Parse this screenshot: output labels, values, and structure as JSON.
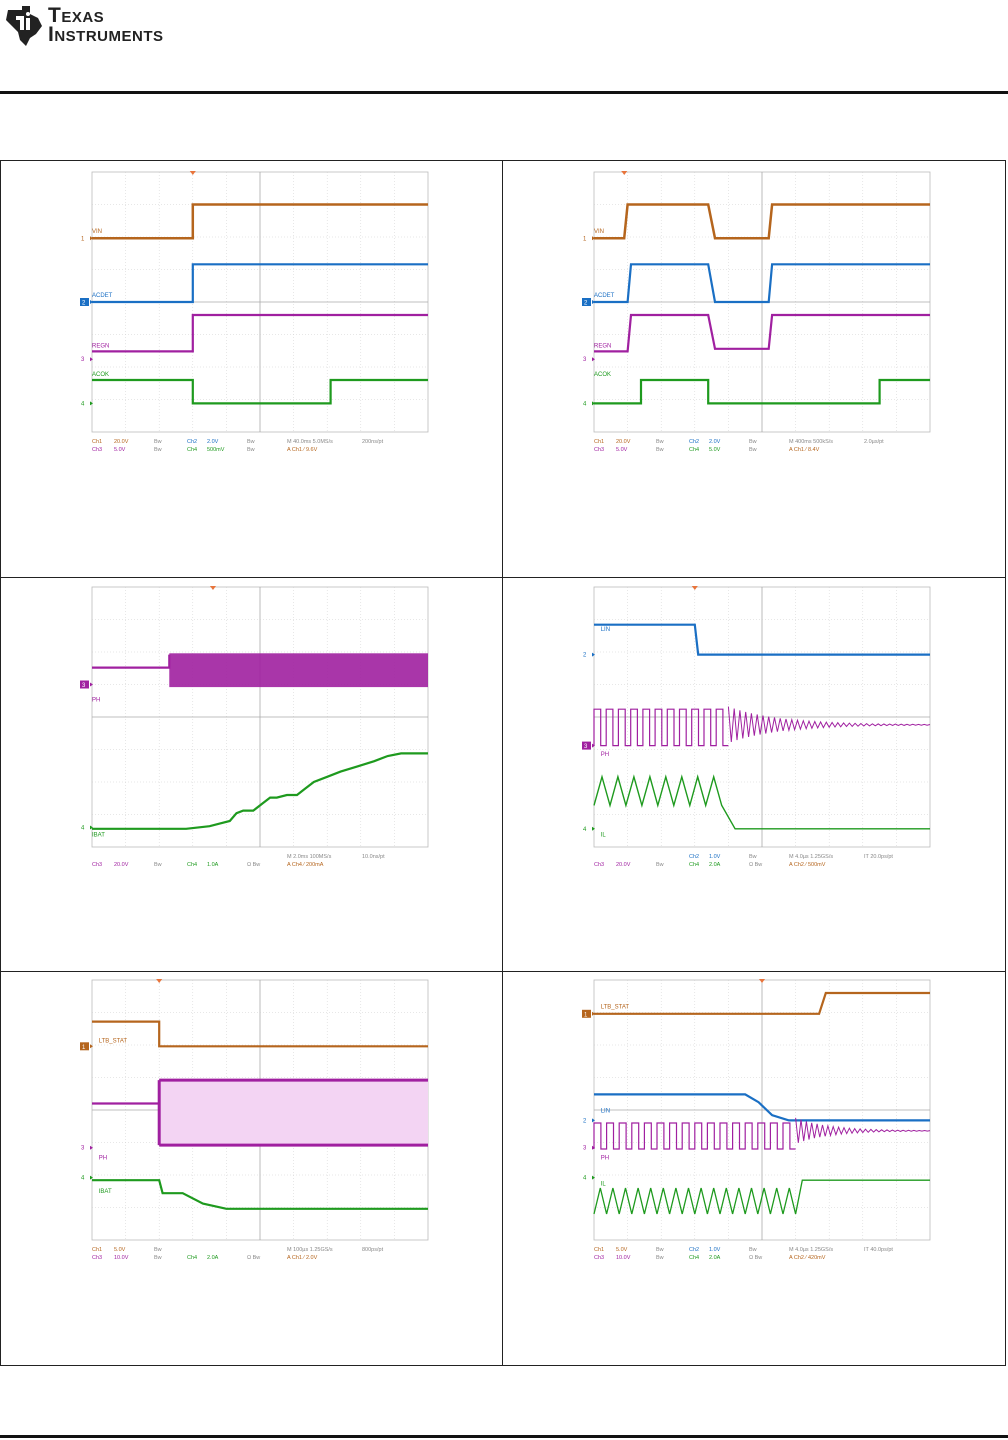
{
  "header": {
    "logo_line1": "Texas",
    "logo_line2": "Instruments",
    "logo_icon": "ti-state-logo-icon"
  },
  "scopes": [
    {
      "id": "scope-1",
      "channels": [
        "VIN",
        "ACDET",
        "REGN",
        "ACOK"
      ],
      "settings": {
        "row1": [
          "Ch1",
          "20.0V",
          "Bw",
          "Ch2",
          "2.0V",
          "Bw",
          "M 40.0ms 5.0MS/s",
          "200ns/pt"
        ],
        "row2": [
          "Ch3",
          "5.0V",
          "Bw",
          "Ch4",
          "500mV",
          "Bw",
          "A  Ch1  ⁄  9.6V",
          ""
        ]
      }
    },
    {
      "id": "scope-2",
      "channels": [
        "VIN",
        "ACDET",
        "REGN",
        "ACOK"
      ],
      "settings": {
        "row1": [
          "Ch1",
          "20.0V",
          "Bw",
          "Ch2",
          "2.0V",
          "Bw",
          "M 400ms 500kS/s",
          "2.0µs/pt"
        ],
        "row2": [
          "Ch3",
          "5.0V",
          "Bw",
          "Ch4",
          "5.0V",
          "Bw",
          "A  Ch1  ⁄  8.4V",
          ""
        ]
      }
    },
    {
      "id": "scope-3",
      "channels": [
        "PH",
        "IBAT"
      ],
      "settings": {
        "row1": [
          "",
          "",
          "",
          "",
          "",
          "",
          "M 2.0ms 100MS/s",
          "10.0ns/pt"
        ],
        "row2": [
          "Ch3",
          "20.0V",
          "Bw",
          "Ch4",
          "1.0A",
          "Ω Bw",
          "A  Ch4  ⁄  200mA",
          ""
        ]
      }
    },
    {
      "id": "scope-4",
      "channels": [
        "LIN",
        "PH",
        "IL"
      ],
      "settings": {
        "row1": [
          "",
          "",
          "",
          "Ch2",
          "1.0V",
          "Bw",
          "M 4.0µs 1.25GS/s",
          "IT 20.0ps/pt"
        ],
        "row2": [
          "Ch3",
          "20.0V",
          "Bw",
          "Ch4",
          "2.0A",
          "Ω Bw",
          "A  Ch2  ⁄  500mV",
          ""
        ]
      }
    },
    {
      "id": "scope-5",
      "channels": [
        "LTB_STAT",
        "PH",
        "IBAT"
      ],
      "settings": {
        "row1": [
          "Ch1",
          "5.0V",
          "Bw",
          "",
          "",
          "",
          "M 100µs 1.25GS/s",
          "800ps/pt"
        ],
        "row2": [
          "Ch3",
          "10.0V",
          "Bw",
          "Ch4",
          "2.0A",
          "Ω Bw",
          "A  Ch1  ⁄  2.0V",
          ""
        ]
      }
    },
    {
      "id": "scope-6",
      "channels": [
        "LTB_STAT",
        "LIN",
        "PH",
        "IL"
      ],
      "settings": {
        "row1": [
          "Ch1",
          "5.0V",
          "Bw",
          "Ch2",
          "1.0V",
          "Bw",
          "M 4.0µs 1.25GS/s",
          "IT 40.0ps/pt"
        ],
        "row2": [
          "Ch3",
          "10.0V",
          "Bw",
          "Ch4",
          "2.0A",
          "Ω Bw",
          "A  Ch2  ⁄  420mV",
          ""
        ]
      }
    }
  ],
  "colors": {
    "ch1": "#b5651d",
    "ch2": "#1a6fc4",
    "ch3": "#a020a0",
    "ch4": "#1e9a1e",
    "grid": "#cfcfcf",
    "text_gray": "#888888"
  }
}
